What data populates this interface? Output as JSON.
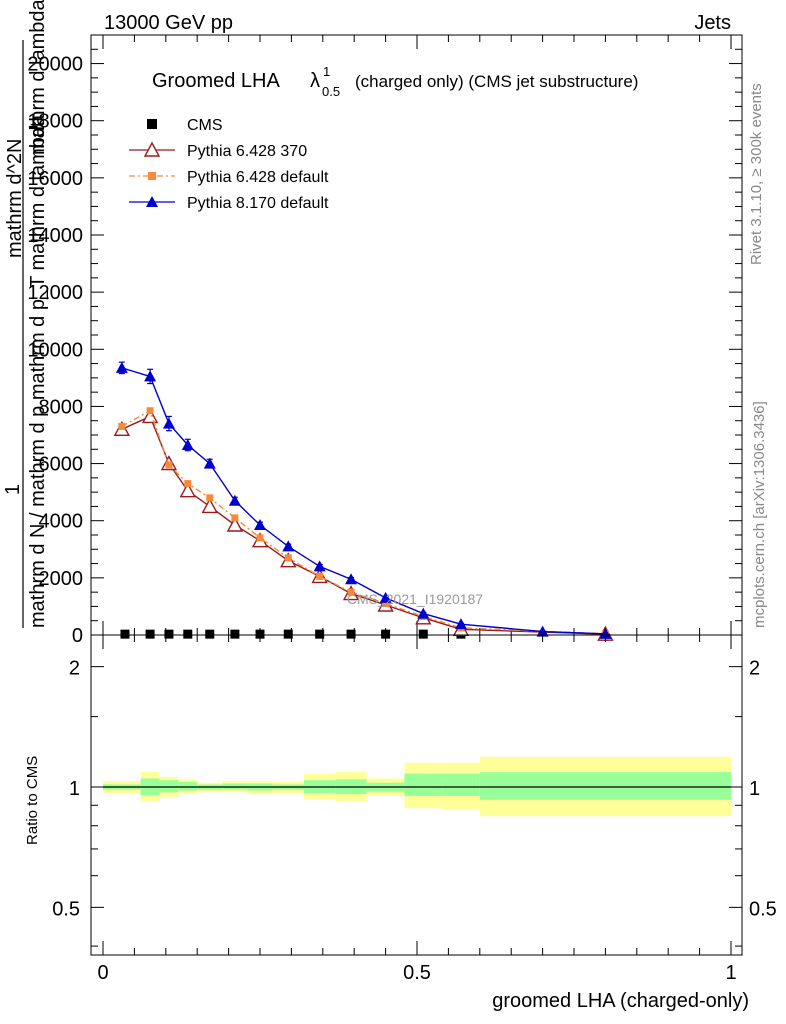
{
  "header": {
    "left": "13000 GeV pp",
    "right": "Jets"
  },
  "side_labels": {
    "rivet": "Rivet 3.1.10, ≥ 300k events",
    "mcplots": "mcplots.cern.ch [arXiv:1306.3436]"
  },
  "watermark": "CMS_2021_I1920187",
  "colors": {
    "cms": "#000000",
    "pythia6_370": "#9b1b1b",
    "pythia6_default": "#f58a3a",
    "pythia8_default": "#0000cc",
    "band_inner": "#99ff99",
    "band_outer": "#ffff99"
  },
  "chart_data": [
    {
      "type": "line",
      "title_main": "Groomed LHA",
      "title_symbol": "λ",
      "title_sup": "1",
      "title_sub": "0.5",
      "title_rest": "(charged only) (CMS jet substructure)",
      "ylabel_numerator": "1",
      "ylabel_denominator": "mathrm d N / mathrm d p mathrm d p_T mathrm d lambda",
      "ylabel_top": "mathrm d^2N",
      "ylabel_overlap": "mathrm d lambda",
      "ylim": [
        0,
        21000
      ],
      "yticks": [
        0,
        2000,
        4000,
        6000,
        8000,
        10000,
        12000,
        14000,
        16000,
        18000,
        20000
      ],
      "ytick_labels": [
        "0",
        "2000",
        "4000",
        "6000",
        "8000",
        "10000",
        "12000",
        "14000",
        "16000",
        "18000",
        "20000"
      ],
      "xlim": [
        -0.02,
        1.02
      ],
      "legend": [
        "CMS",
        "Pythia 6.428 370",
        "Pythia 6.428 default",
        "Pythia 8.170 default"
      ],
      "series": [
        {
          "name": "CMS",
          "key": "cms",
          "marker": "square",
          "x": [
            0.035,
            0.075,
            0.105,
            0.135,
            0.17,
            0.21,
            0.25,
            0.295,
            0.345,
            0.395,
            0.45,
            0.51,
            0.57
          ],
          "values": [
            30,
            30,
            30,
            30,
            30,
            30,
            30,
            30,
            30,
            30,
            30,
            30,
            30
          ]
        },
        {
          "name": "Pythia 6.428 370",
          "key": "pythia6_370",
          "marker": "open-triangle",
          "x": [
            0.03,
            0.075,
            0.105,
            0.135,
            0.17,
            0.21,
            0.25,
            0.295,
            0.345,
            0.395,
            0.45,
            0.51,
            0.57,
            0.8
          ],
          "values": [
            7200,
            7650,
            6000,
            5050,
            4500,
            3850,
            3300,
            2600,
            2050,
            1450,
            1050,
            600,
            200,
            30
          ]
        },
        {
          "name": "Pythia 6.428 default",
          "key": "pythia6_default",
          "marker": "square-small",
          "dashed": true,
          "x": [
            0.03,
            0.075,
            0.105,
            0.135,
            0.17,
            0.21,
            0.25,
            0.295,
            0.345,
            0.395,
            0.45,
            0.51,
            0.57,
            0.8
          ],
          "values": [
            7300,
            7850,
            5950,
            5300,
            4800,
            4100,
            3400,
            2700,
            2050,
            1500,
            1100,
            650,
            250,
            40
          ]
        },
        {
          "name": "Pythia 8.170 default",
          "key": "pythia8_default",
          "marker": "filled-triangle",
          "x": [
            0.03,
            0.075,
            0.105,
            0.135,
            0.17,
            0.21,
            0.25,
            0.295,
            0.345,
            0.395,
            0.45,
            0.51,
            0.57,
            0.7,
            0.8
          ],
          "values": [
            9350,
            9050,
            7400,
            6650,
            6000,
            4700,
            3850,
            3100,
            2400,
            1950,
            1300,
            750,
            380,
            120,
            40
          ],
          "errors": [
            200,
            250,
            250,
            200,
            150,
            120,
            100,
            80,
            70,
            60,
            50,
            40,
            30,
            20,
            10
          ]
        }
      ]
    },
    {
      "type": "area",
      "ylabel": "Ratio to CMS",
      "xlabel": "groomed LHA (charged-only)",
      "yscale": "log",
      "ylim": [
        0.38,
        2.4
      ],
      "yticks": [
        0.5,
        1,
        2
      ],
      "ytick_labels": [
        "0.5",
        "1",
        "2"
      ],
      "xlim": [
        -0.02,
        1.02
      ],
      "xticks": [
        0,
        0.5,
        1
      ],
      "xtick_labels": [
        "0",
        "0.5",
        "1"
      ],
      "reference": 1,
      "bins": [
        {
          "lo": 0.0,
          "hi": 0.06,
          "inner": [
            0.985,
            1.015
          ],
          "outer": [
            0.965,
            1.035
          ]
        },
        {
          "lo": 0.06,
          "hi": 0.09,
          "inner": [
            0.955,
            1.05
          ],
          "outer": [
            0.92,
            1.09
          ]
        },
        {
          "lo": 0.09,
          "hi": 0.12,
          "inner": [
            0.97,
            1.04
          ],
          "outer": [
            0.945,
            1.06
          ]
        },
        {
          "lo": 0.12,
          "hi": 0.15,
          "inner": [
            0.98,
            1.03
          ],
          "outer": [
            0.96,
            1.045
          ]
        },
        {
          "lo": 0.15,
          "hi": 0.19,
          "inner": [
            0.985,
            1.015
          ],
          "outer": [
            0.97,
            1.025
          ]
        },
        {
          "lo": 0.19,
          "hi": 0.23,
          "inner": [
            0.985,
            1.02
          ],
          "outer": [
            0.97,
            1.035
          ]
        },
        {
          "lo": 0.23,
          "hi": 0.27,
          "inner": [
            0.98,
            1.02
          ],
          "outer": [
            0.96,
            1.035
          ]
        },
        {
          "lo": 0.27,
          "hi": 0.32,
          "inner": [
            0.985,
            1.015
          ],
          "outer": [
            0.965,
            1.03
          ]
        },
        {
          "lo": 0.32,
          "hi": 0.37,
          "inner": [
            0.965,
            1.04
          ],
          "outer": [
            0.93,
            1.08
          ]
        },
        {
          "lo": 0.37,
          "hi": 0.42,
          "inner": [
            0.96,
            1.045
          ],
          "outer": [
            0.92,
            1.09
          ]
        },
        {
          "lo": 0.42,
          "hi": 0.48,
          "inner": [
            0.975,
            1.025
          ],
          "outer": [
            0.95,
            1.05
          ]
        },
        {
          "lo": 0.48,
          "hi": 0.54,
          "inner": [
            0.95,
            1.08
          ],
          "outer": [
            0.885,
            1.15
          ]
        },
        {
          "lo": 0.54,
          "hi": 0.6,
          "inner": [
            0.95,
            1.08
          ],
          "outer": [
            0.88,
            1.15
          ]
        },
        {
          "lo": 0.6,
          "hi": 1.0,
          "inner": [
            0.93,
            1.09
          ],
          "outer": [
            0.845,
            1.19
          ]
        }
      ]
    }
  ]
}
